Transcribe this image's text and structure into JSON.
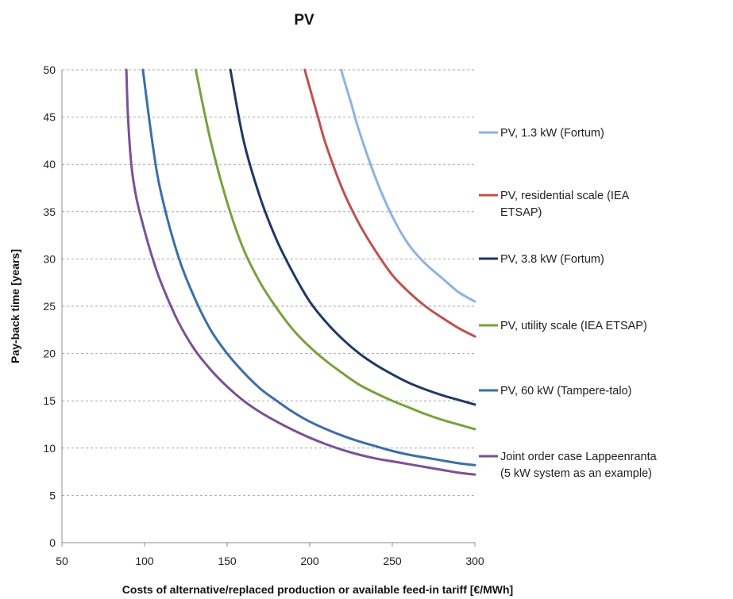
{
  "chart_data": {
    "type": "line",
    "title": "PV",
    "xlabel": "Costs of alternative/replaced production or available feed-in tariff [€/MWh]",
    "ylabel": "Pay-back time [years]",
    "xlim": [
      50,
      300
    ],
    "ylim": [
      0,
      50
    ],
    "xticks": [
      "50",
      "100",
      "150",
      "200",
      "250",
      "300"
    ],
    "yticks": [
      "0",
      "5",
      "10",
      "15",
      "20",
      "25",
      "30",
      "35",
      "40",
      "45",
      "50"
    ],
    "grid": "horizontal dashed",
    "legend_position": "right",
    "series": [
      {
        "name": [
          "PV, 1.3 kW (Fortum)"
        ],
        "color": "#8db3e2",
        "x": [
          219,
          225,
          230,
          240,
          250,
          260,
          270,
          280,
          290,
          300
        ],
        "y": [
          50,
          46.5,
          43.5,
          38.5,
          34.5,
          31.5,
          29.5,
          28,
          26.5,
          25.5
        ]
      },
      {
        "name": [
          "PV, residential scale (IEA",
          "ETSAP)"
        ],
        "color": "#c0504d",
        "x": [
          197,
          205,
          210,
          220,
          230,
          240,
          250,
          260,
          270,
          280,
          290,
          300
        ],
        "y": [
          50,
          45,
          42,
          37.3,
          33.7,
          30.8,
          28.3,
          26.5,
          25,
          23.8,
          22.7,
          21.8
        ]
      },
      {
        "name": [
          "PV, 3.8 kW (Fortum)"
        ],
        "color": "#1f3864",
        "x": [
          152,
          160,
          170,
          180,
          190,
          200,
          210,
          220,
          230,
          240,
          250,
          260,
          270,
          280,
          290,
          300
        ],
        "y": [
          50,
          42.5,
          36.5,
          32,
          28.5,
          25.5,
          23.3,
          21.5,
          20,
          18.8,
          17.8,
          16.9,
          16.2,
          15.6,
          15.1,
          14.6
        ]
      },
      {
        "name": [
          "PV, utility scale (IEA ETSAP)"
        ],
        "color": "#77a23a",
        "x": [
          131,
          140,
          150,
          160,
          170,
          180,
          190,
          200,
          210,
          220,
          230,
          240,
          250,
          260,
          270,
          280,
          290,
          300
        ],
        "y": [
          50,
          42.5,
          36,
          31,
          27.5,
          24.8,
          22.5,
          20.7,
          19.2,
          17.9,
          16.7,
          15.8,
          15,
          14.3,
          13.6,
          13,
          12.5,
          12
        ]
      },
      {
        "name": [
          "PV, 60 kW (Tampere-talo)"
        ],
        "color": "#3c6ea8",
        "x": [
          99,
          105,
          110,
          120,
          130,
          140,
          150,
          160,
          170,
          180,
          190,
          200,
          210,
          220,
          230,
          240,
          250,
          260,
          270,
          280,
          290,
          300
        ],
        "y": [
          50,
          42,
          37,
          30.5,
          26,
          22.5,
          20,
          18,
          16.3,
          15,
          13.8,
          12.8,
          12,
          11.3,
          10.7,
          10.2,
          9.7,
          9.3,
          9,
          8.7,
          8.4,
          8.2
        ]
      },
      {
        "name": [
          "Joint order case Lappeenranta",
          "(5 kW system as an example)"
        ],
        "color": "#7a5195",
        "x": [
          89,
          90,
          92,
          95,
          100,
          105,
          110,
          120,
          130,
          140,
          150,
          160,
          170,
          180,
          190,
          200,
          210,
          220,
          230,
          240,
          250,
          260,
          270,
          280,
          290,
          300
        ],
        "y": [
          50,
          45,
          40,
          36.5,
          33,
          30,
          27.5,
          23.5,
          20.5,
          18.3,
          16.5,
          15,
          13.8,
          12.8,
          11.9,
          11.1,
          10.4,
          9.8,
          9.3,
          8.9,
          8.6,
          8.3,
          8,
          7.7,
          7.4,
          7.2
        ]
      }
    ]
  }
}
